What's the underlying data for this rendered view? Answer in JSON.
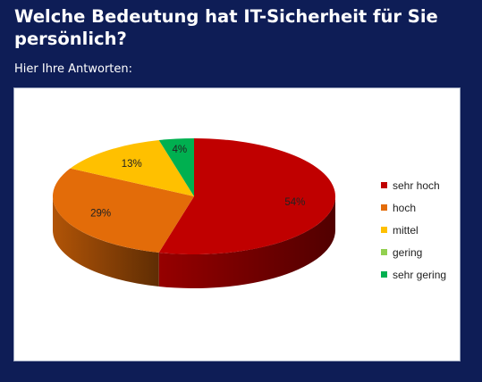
{
  "page": {
    "title": "Welche Bedeutung hat IT-Sicherheit für Sie persönlich?",
    "subtitle": "Hier Ihre Antworten:"
  },
  "chart_data": {
    "type": "pie",
    "style": "3d",
    "categories": [
      "sehr hoch",
      "hoch",
      "mittel",
      "gering",
      "sehr gering"
    ],
    "values": [
      54,
      29,
      13,
      0,
      4
    ],
    "labels": [
      "54%",
      "29%",
      "13%",
      "",
      "4%"
    ],
    "colors": [
      "#c00000",
      "#e36c09",
      "#ffc000",
      "#92d050",
      "#00b050"
    ],
    "legend_position": "right"
  }
}
